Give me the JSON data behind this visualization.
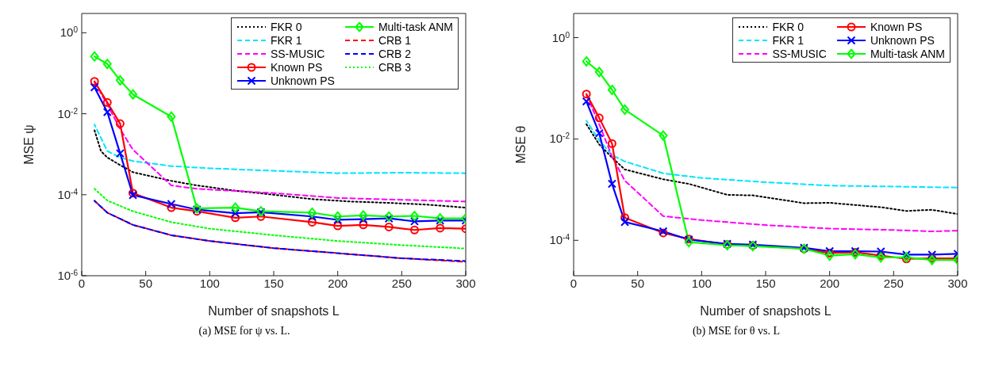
{
  "chart_data": [
    {
      "type": "line",
      "title": "(a) MSE for ψ vs. L.",
      "xlabel": "Number of snapshots L",
      "ylabel": "MSE ψ",
      "log": "y",
      "xlim": [
        0,
        300
      ],
      "xticks": [
        0,
        50,
        100,
        150,
        200,
        250,
        300
      ],
      "ylim": [
        1e-06,
        3
      ],
      "yticks": [
        {
          "value": 1e-06,
          "label": "10$^{-6}$"
        },
        {
          "value": 0.0001,
          "label": "10$^{-4}$"
        },
        {
          "value": 0.01,
          "label": "10$^{-2}$"
        },
        {
          "value": 1,
          "label": "10$^{0}$"
        }
      ],
      "grid": false,
      "legend": "top right",
      "series": [
        {
          "name": "FKR 0",
          "color": "#000000",
          "line_style": "dotted",
          "marker": "none",
          "x": [
            10,
            15,
            20,
            30,
            40,
            70,
            90,
            120,
            150,
            180,
            210,
            240,
            270,
            300
          ],
          "values": [
            0.0039,
            0.0012,
            0.00083,
            0.00054,
            0.00036,
            0.00022,
            0.00017,
            0.000126,
            0.0001,
            7.8e-05,
            6.8e-05,
            6.3e-05,
            5.7e-05,
            4.8e-05
          ]
        },
        {
          "name": "FKR 1",
          "color": "#00e5ff",
          "line_style": "dashed",
          "marker": "none",
          "x": [
            10,
            20,
            30,
            40,
            70,
            100,
            150,
            200,
            250,
            300
          ],
          "values": [
            0.0054,
            0.0012,
            0.00083,
            0.00068,
            0.00051,
            0.00045,
            0.00039,
            0.00034,
            0.00035,
            0.00034
          ]
        },
        {
          "name": "SS-MUSIC",
          "color": "#ff00ff",
          "line_style": "dashed",
          "marker": "none",
          "x": [
            10,
            20,
            30,
            40,
            70,
            90,
            150,
            200,
            250,
            300
          ],
          "values": [
            0.059,
            0.017,
            0.0042,
            0.0013,
            0.00017,
            0.00014,
            0.00011,
            8.3e-05,
            7.5e-05,
            6.8e-05
          ]
        },
        {
          "name": "Known PS",
          "color": "#ff0000",
          "line_style": "solid",
          "marker": "circle",
          "x": [
            10,
            20,
            30,
            40,
            70,
            90,
            120,
            140,
            180,
            200,
            220,
            240,
            260,
            280,
            300
          ],
          "values": [
            0.063,
            0.019,
            0.0057,
            0.00011,
            4.8e-05,
            3.9e-05,
            2.7e-05,
            2.9e-05,
            2.1e-05,
            1.7e-05,
            1.8e-05,
            1.6e-05,
            1.35e-05,
            1.5e-05,
            1.45e-05
          ]
        },
        {
          "name": "Unknown PS",
          "color": "#0000ff",
          "line_style": "solid",
          "marker": "cross",
          "x": [
            10,
            20,
            30,
            40,
            70,
            90,
            120,
            140,
            180,
            200,
            220,
            240,
            260,
            280,
            300
          ],
          "values": [
            0.045,
            0.011,
            0.00105,
            9.8e-05,
            5.9e-05,
            4.3e-05,
            3.5e-05,
            3.7e-05,
            2.9e-05,
            2.4e-05,
            2.5e-05,
            2.6e-05,
            2.2e-05,
            2.3e-05,
            2.3e-05
          ]
        },
        {
          "name": "Multi-task ANM",
          "color": "#00ff00",
          "line_style": "solid",
          "marker": "diamond",
          "x": [
            10,
            20,
            30,
            40,
            70,
            90,
            120,
            140,
            180,
            200,
            220,
            240,
            260,
            280,
            300
          ],
          "values": [
            0.26,
            0.17,
            0.067,
            0.03,
            0.0085,
            4.6e-05,
            4.8e-05,
            3.9e-05,
            3.6e-05,
            2.9e-05,
            3.1e-05,
            2.9e-05,
            3e-05,
            2.6e-05,
            2.6e-05
          ]
        },
        {
          "name": "CRB 1",
          "color": "#ff0000",
          "line_style": "dashed",
          "marker": "none",
          "x": [
            10,
            20,
            40,
            70,
            100,
            150,
            200,
            250,
            300
          ],
          "values": [
            7.1e-05,
            3.6e-05,
            1.8e-05,
            1e-05,
            7.2e-06,
            4.8e-06,
            3.6e-06,
            2.7e-06,
            2.2e-06
          ]
        },
        {
          "name": "CRB 2",
          "color": "#0000ff",
          "line_style": "dashed",
          "marker": "none",
          "x": [
            10,
            20,
            40,
            70,
            100,
            150,
            200,
            250,
            300
          ],
          "values": [
            7.1e-05,
            3.6e-05,
            1.8e-05,
            1e-05,
            7.2e-06,
            4.8e-06,
            3.6e-06,
            2.7e-06,
            2.3e-06
          ]
        },
        {
          "name": "CRB 3",
          "color": "#00ff00",
          "line_style": "dotted",
          "marker": "none",
          "x": [
            10,
            20,
            40,
            70,
            100,
            150,
            200,
            250,
            300
          ],
          "values": [
            0.00014,
            7.2e-05,
            3.9e-05,
            2.1e-05,
            1.45e-05,
            1e-05,
            7.2e-06,
            5.7e-06,
            4.7e-06
          ]
        }
      ]
    },
    {
      "type": "line",
      "title": "(b) MSE for θ vs. L",
      "xlabel": "Number of snapshots L",
      "ylabel": "MSE θ",
      "log": "y",
      "xlim": [
        0,
        300
      ],
      "xticks": [
        0,
        50,
        100,
        150,
        200,
        250,
        300
      ],
      "ylim": [
        2e-05,
        3
      ],
      "yticks": [
        {
          "value": 0.0001,
          "label": "10$^{-4}$"
        },
        {
          "value": 0.01,
          "label": "10$^{-2}$"
        },
        {
          "value": 1,
          "label": "10$^{0}$"
        }
      ],
      "grid": false,
      "legend": "top right",
      "series": [
        {
          "name": "FKR 0",
          "color": "#000000",
          "line_style": "dotted",
          "marker": "none",
          "x": [
            10,
            20,
            30,
            40,
            70,
            90,
            120,
            140,
            180,
            200,
            240,
            260,
            280,
            300
          ],
          "values": [
            0.0195,
            0.0078,
            0.0043,
            0.0025,
            0.0016,
            0.0013,
            0.00079,
            0.00077,
            0.00054,
            0.00055,
            0.00045,
            0.00038,
            0.0004,
            0.00033
          ]
        },
        {
          "name": "FKR 1",
          "color": "#00e5ff",
          "line_style": "dashed",
          "marker": "none",
          "x": [
            10,
            20,
            30,
            40,
            70,
            100,
            150,
            200,
            250,
            300
          ],
          "values": [
            0.023,
            0.0094,
            0.0048,
            0.0036,
            0.0021,
            0.0017,
            0.0014,
            0.0012,
            0.00115,
            0.0011
          ]
        },
        {
          "name": "SS-MUSIC",
          "color": "#ff00ff",
          "line_style": "dashed",
          "marker": "none",
          "x": [
            10,
            20,
            30,
            40,
            70,
            100,
            150,
            200,
            250,
            280,
            300
          ],
          "values": [
            0.074,
            0.0195,
            0.0045,
            0.0015,
            0.0003,
            0.00025,
            0.0002,
            0.00017,
            0.00016,
            0.00015,
            0.000155
          ]
        },
        {
          "name": "Known PS",
          "color": "#ff0000",
          "line_style": "solid",
          "marker": "circle",
          "x": [
            10,
            20,
            30,
            40,
            70,
            90,
            120,
            140,
            180,
            200,
            220,
            240,
            260,
            280,
            300
          ],
          "values": [
            0.077,
            0.026,
            0.0081,
            0.00028,
            0.00014,
            0.000106,
            8.3e-05,
            7.9e-05,
            6.8e-05,
            5.6e-05,
            5.8e-05,
            5e-05,
            4.3e-05,
            4.4e-05,
            4.4e-05
          ]
        },
        {
          "name": "Unknown PS",
          "color": "#0000ff",
          "line_style": "solid",
          "marker": "cross",
          "x": [
            10,
            20,
            30,
            40,
            70,
            90,
            120,
            140,
            180,
            200,
            220,
            240,
            260,
            280,
            300
          ],
          "values": [
            0.055,
            0.013,
            0.0013,
            0.00023,
            0.00015,
            0.000103,
            8.5e-05,
            8.2e-05,
            7.1e-05,
            6.1e-05,
            6.1e-05,
            6e-05,
            5.2e-05,
            5.2e-05,
            5.4e-05
          ]
        },
        {
          "name": "Multi-task ANM",
          "color": "#00ff00",
          "line_style": "solid",
          "marker": "diamond",
          "x": [
            10,
            20,
            30,
            40,
            70,
            90,
            120,
            140,
            180,
            200,
            220,
            240,
            260,
            280,
            300
          ],
          "values": [
            0.34,
            0.21,
            0.093,
            0.038,
            0.0117,
            9.2e-05,
            8e-05,
            7.7e-05,
            6.8e-05,
            5e-05,
            5.3e-05,
            4.6e-05,
            4.6e-05,
            4.1e-05,
            4.1e-05
          ]
        }
      ]
    }
  ]
}
